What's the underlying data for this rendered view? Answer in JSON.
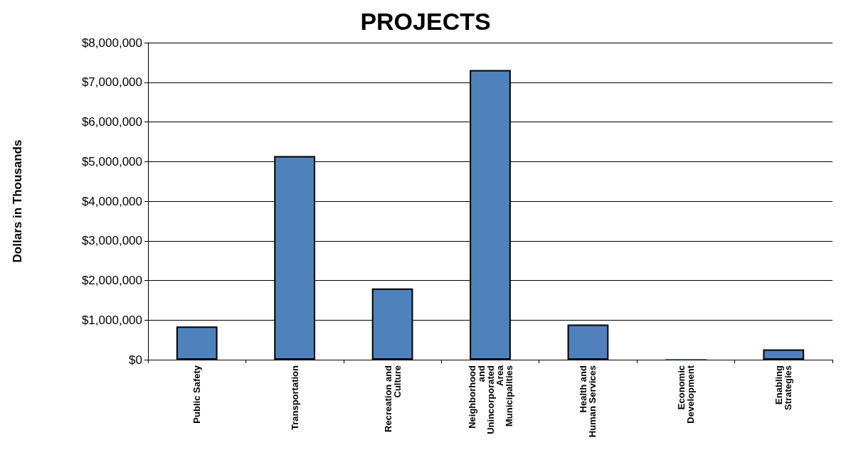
{
  "chart_data": {
    "type": "bar",
    "title": "PROJECTS",
    "ylabel": "Dollars in Thousands",
    "categories": [
      "Public Safety",
      "Transportation",
      "Recreation and\nCulture",
      "Neighborhood\nand\nUnincorporated\nArea\nMunicipalities",
      "Health and\nHuman Services",
      "Economic\nDevelopment",
      "Enabling\nStrategies"
    ],
    "values": [
      840000,
      5140000,
      1800000,
      7310000,
      890000,
      20000,
      260000
    ],
    "color": "#4f81bd",
    "ylim": [
      0,
      8000000
    ],
    "yticks": [
      {
        "value": 0,
        "label": "$0"
      },
      {
        "value": 1000000,
        "label": "$1,000,000"
      },
      {
        "value": 2000000,
        "label": "$2,000,000"
      },
      {
        "value": 3000000,
        "label": "$3,000,000"
      },
      {
        "value": 4000000,
        "label": "$4,000,000"
      },
      {
        "value": 5000000,
        "label": "$5,000,000"
      },
      {
        "value": 6000000,
        "label": "$6,000,000"
      },
      {
        "value": 7000000,
        "label": "$7,000,000"
      },
      {
        "value": 8000000,
        "label": "$8,000,000"
      }
    ],
    "grid": "y"
  }
}
